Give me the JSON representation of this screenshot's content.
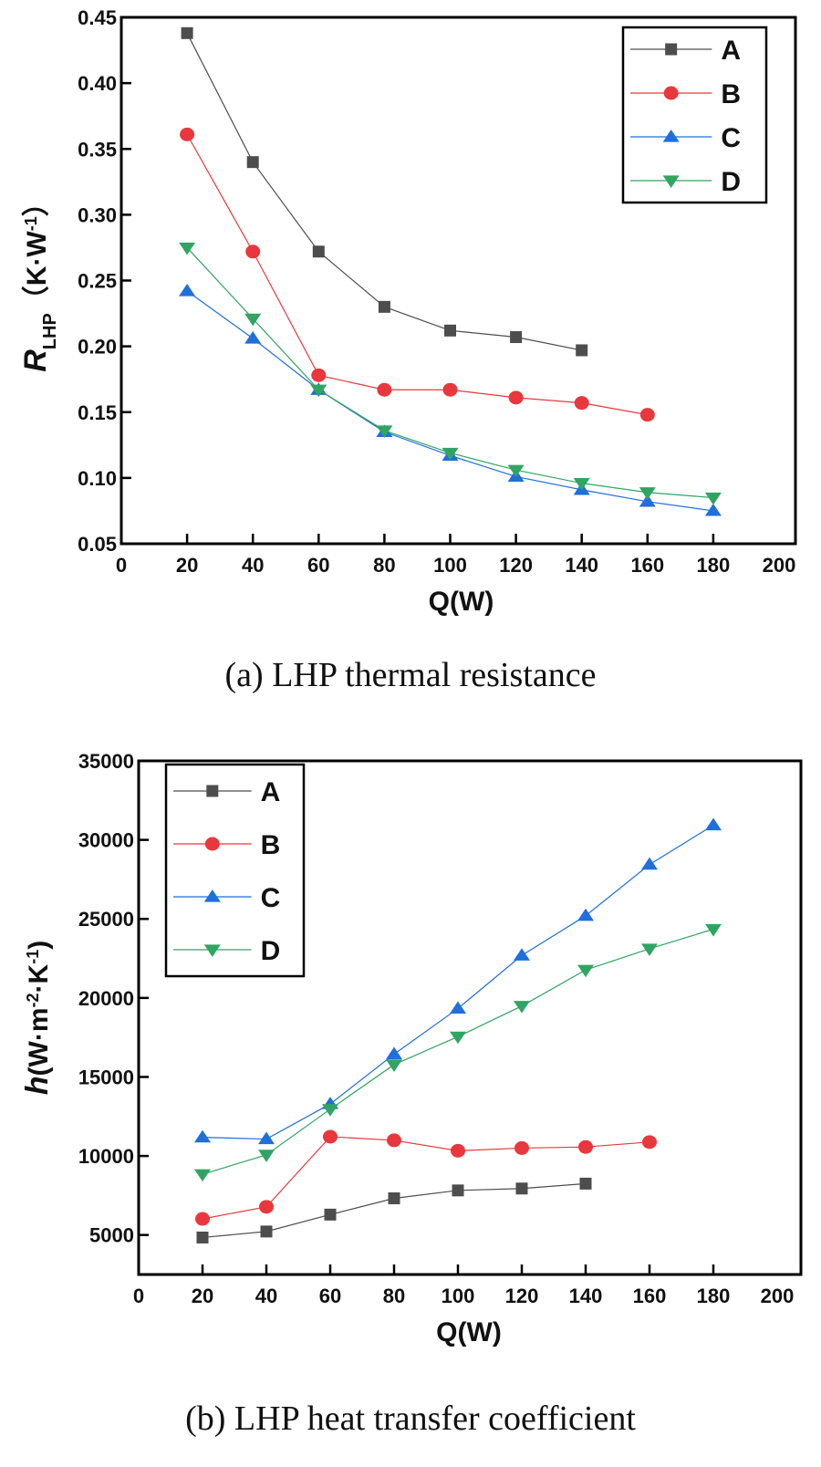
{
  "chart_data": [
    {
      "type": "line",
      "caption": "(a)  LHP thermal resistance",
      "xlabel": "Q(W)",
      "ylabel": {
        "main": "R",
        "sub": "LHP",
        "open": "（K·W",
        "sup": "-1",
        "close": "）"
      },
      "xlim": [
        0,
        200
      ],
      "ylim": [
        0.05,
        0.45
      ],
      "xticks": [
        "0",
        "20",
        "40",
        "60",
        "80",
        "100",
        "120",
        "140",
        "160",
        "180",
        "200"
      ],
      "yticks": [
        "0.05",
        "0.10",
        "0.15",
        "0.20",
        "0.25",
        "0.30",
        "0.35",
        "0.40",
        "0.45"
      ],
      "legend_position": "top-right",
      "series": [
        {
          "name": "A",
          "marker": "square",
          "color": "#4d4d4d",
          "x": [
            20,
            40,
            60,
            80,
            100,
            120,
            140
          ],
          "y": [
            0.438,
            0.34,
            0.272,
            0.23,
            0.212,
            0.207,
            0.197
          ]
        },
        {
          "name": "B",
          "marker": "circle",
          "color": "#e8383d",
          "x": [
            20,
            40,
            60,
            80,
            100,
            120,
            140,
            160
          ],
          "y": [
            0.361,
            0.272,
            0.178,
            0.167,
            0.167,
            0.161,
            0.157,
            0.148
          ]
        },
        {
          "name": "C",
          "marker": "triangle-up",
          "color": "#1f6fdc",
          "x": [
            20,
            40,
            60,
            80,
            100,
            120,
            140,
            160,
            180
          ],
          "y": [
            0.242,
            0.206,
            0.167,
            0.135,
            0.117,
            0.101,
            0.091,
            0.082,
            0.075
          ]
        },
        {
          "name": "D",
          "marker": "triangle-down",
          "color": "#30a563",
          "x": [
            20,
            40,
            60,
            80,
            100,
            120,
            140,
            160,
            180
          ],
          "y": [
            0.275,
            0.221,
            0.167,
            0.136,
            0.119,
            0.106,
            0.096,
            0.089,
            0.085
          ]
        }
      ]
    },
    {
      "type": "line",
      "caption": "(b)  LHP heat transfer coefficient",
      "xlabel": "Q(W)",
      "ylabel": {
        "main": "h",
        "open": "(W·m",
        "sup": "-2",
        "mid": "·K",
        "sup2": "-1",
        "close": ")"
      },
      "xlim": [
        0,
        200
      ],
      "ylim": [
        2500,
        35000
      ],
      "xticks": [
        "0",
        "20",
        "40",
        "60",
        "80",
        "100",
        "120",
        "140",
        "160",
        "180",
        "200"
      ],
      "yticks": [
        "5000",
        "10000",
        "15000",
        "20000",
        "25000",
        "30000",
        "35000"
      ],
      "legend_position": "top-left",
      "series": [
        {
          "name": "A",
          "marker": "square",
          "color": "#4d4d4d",
          "x": [
            20,
            40,
            60,
            80,
            100,
            120,
            140
          ],
          "y": [
            4840,
            5220,
            6290,
            7320,
            7820,
            7940,
            8250
          ]
        },
        {
          "name": "B",
          "marker": "circle",
          "color": "#e8383d",
          "x": [
            20,
            40,
            60,
            80,
            100,
            120,
            140,
            160
          ],
          "y": [
            6020,
            6780,
            11220,
            10990,
            10330,
            10500,
            10570,
            10880
          ]
        },
        {
          "name": "C",
          "marker": "triangle-up",
          "color": "#1f6fdc",
          "x": [
            20,
            40,
            60,
            80,
            100,
            120,
            140,
            160,
            180
          ],
          "y": [
            11180,
            11070,
            13290,
            16440,
            19330,
            22690,
            25200,
            28440,
            30930
          ]
        },
        {
          "name": "D",
          "marker": "triangle-down",
          "color": "#30a563",
          "x": [
            20,
            40,
            60,
            80,
            100,
            120,
            140,
            160,
            180
          ],
          "y": [
            8840,
            10070,
            12960,
            15780,
            17550,
            19490,
            21770,
            23110,
            24350
          ]
        }
      ]
    }
  ]
}
